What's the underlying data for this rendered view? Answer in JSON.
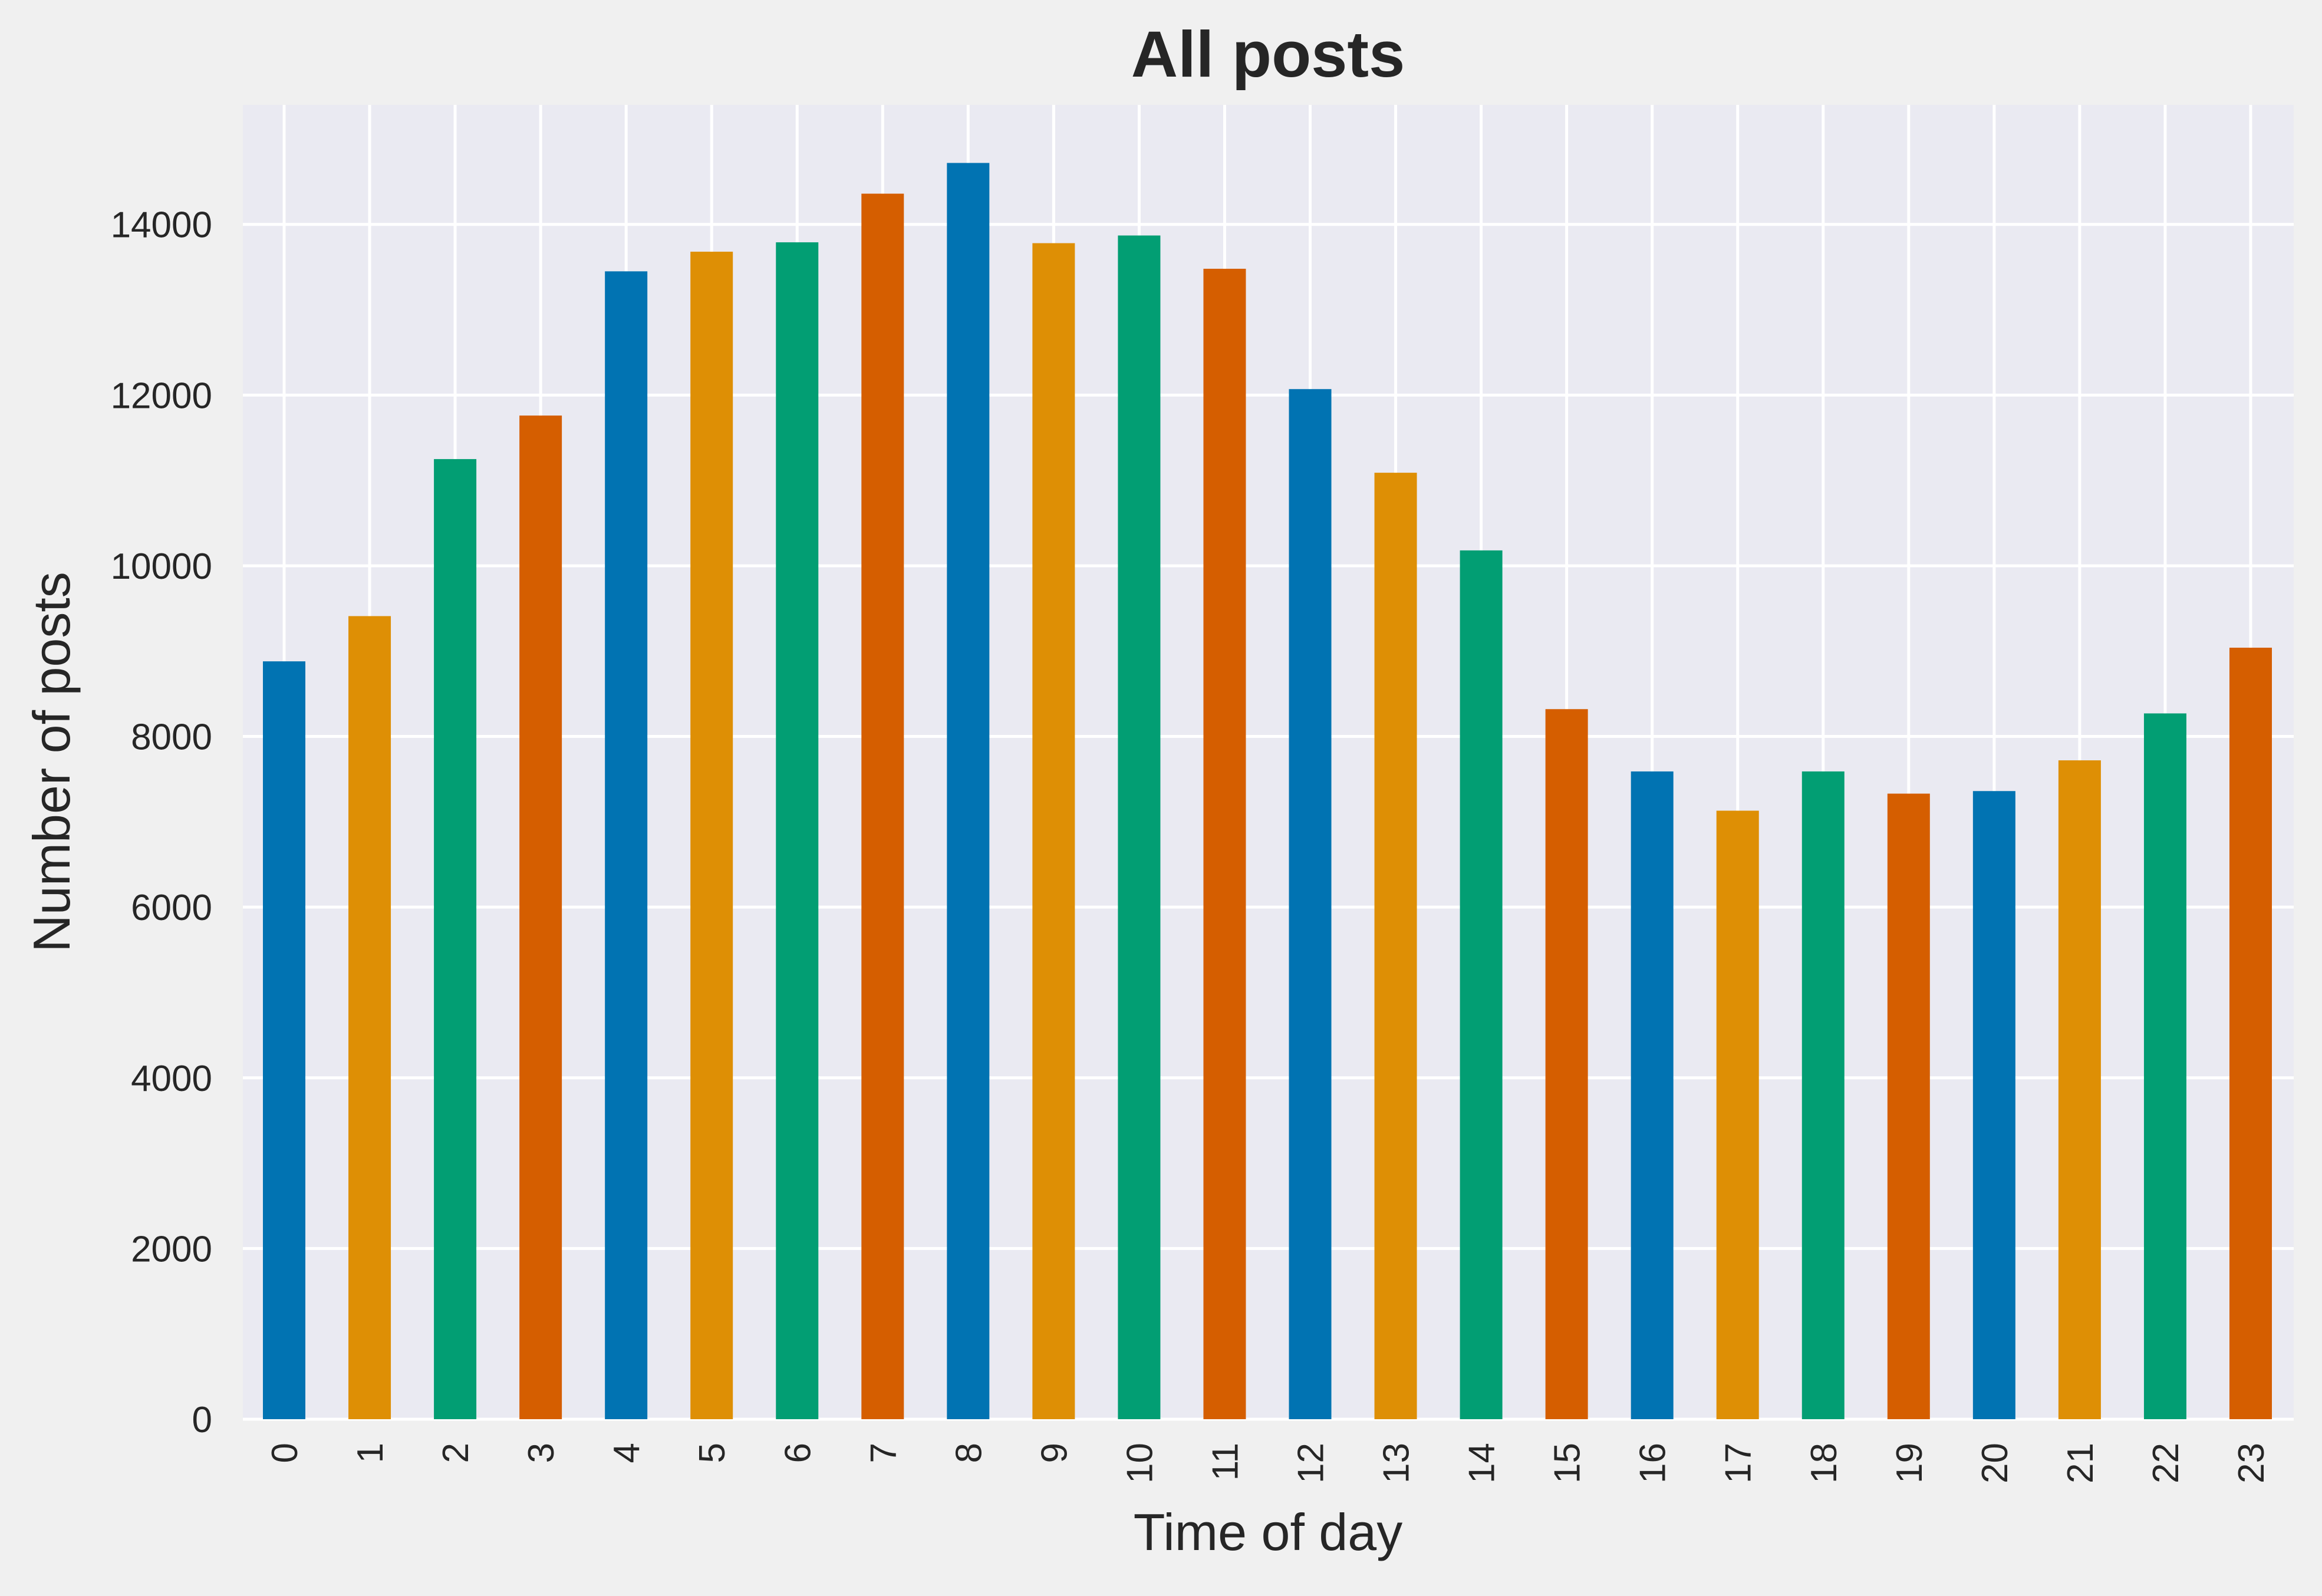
{
  "chart_data": {
    "type": "bar",
    "title": "All posts",
    "xlabel": "Time of day",
    "ylabel": "Number of posts",
    "categories": [
      "0",
      "1",
      "2",
      "3",
      "4",
      "5",
      "6",
      "7",
      "8",
      "9",
      "10",
      "11",
      "12",
      "13",
      "14",
      "15",
      "16",
      "17",
      "18",
      "19",
      "20",
      "21",
      "22",
      "23"
    ],
    "values": [
      8880,
      9410,
      11250,
      11760,
      13450,
      13680,
      13790,
      14360,
      14720,
      13780,
      13870,
      13480,
      12070,
      11090,
      10180,
      8320,
      7590,
      7130,
      7590,
      7330,
      7360,
      7720,
      8270,
      9040
    ],
    "ylim": [
      0,
      15400
    ],
    "yticks": [
      0,
      2000,
      4000,
      6000,
      8000,
      10000,
      12000,
      14000
    ],
    "grid": true,
    "colors": [
      "#0173b2",
      "#de8f05",
      "#029e73",
      "#d55e00"
    ],
    "background": "#eaeaf2"
  }
}
